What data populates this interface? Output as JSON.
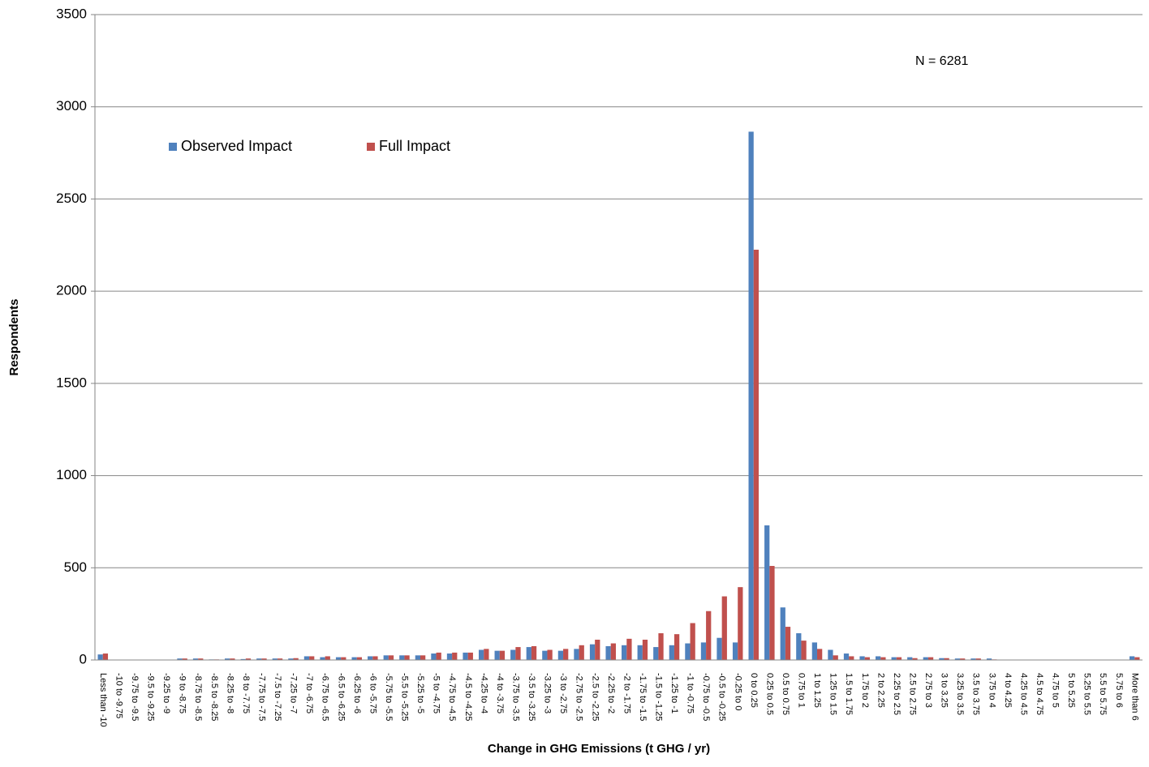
{
  "chart_data": {
    "type": "bar",
    "x_label": "Change in GHG Emissions (t GHG / yr)",
    "y_label": "Respondents",
    "annotation": "N = 6281",
    "categories": [
      "Less than -10",
      "-10 to -9.75",
      "-9.75 to -9.5",
      "-9.5 to -9.25",
      "-9.25 to -9",
      "-9 to -8.75",
      "-8.75 to -8.5",
      "-8.5 to -8.25",
      "-8.25 to -8",
      "-8 to -7.75",
      "-7.75 to -7.5",
      "-7.5 to -7.25",
      "-7.25 to -7",
      "-7 to -6.75",
      "-6.75 to -6.5",
      "-6.5 to -6.25",
      "-6.25 to -6",
      "-6 to -5.75",
      "-5.75 to -5.5",
      "-5.5 to -5.25",
      "-5.25 to -5",
      "-5 to -4.75",
      "-4.75 to -4.5",
      "-4.5 to -4.25",
      "-4.25 to -4",
      "-4 to -3.75",
      "-3.75 to -3.5",
      "-3.5 to -3.25",
      "-3.25 to -3",
      "-3 to -2.75",
      "-2.75 to -2.5",
      "-2.5 to -2.25",
      "-2.25 to -2",
      "-2 to -1.75",
      "-1.75 to -1.5",
      "-1.5 to -1.25",
      "-1.25 to -1",
      "-1 to -0.75",
      "-0.75 to -0.5",
      "-0.5 to -0.25",
      "-0.25 to 0",
      "0 to 0.25",
      "0.25 to 0.5",
      "0.5 to 0.75",
      "0.75 to 1",
      "1 to 1.25",
      "1.25 to 1.5",
      "1.5 to 1.75",
      "1.75 to 2",
      "2 to 2.25",
      "2.25 to 2.5",
      "2.5 to 2.75",
      "2.75 to 3",
      "3 to 3.25",
      "3.25 to 3.5",
      "3.5 to 3.75",
      "3.75 to 4",
      "4 to 4.25",
      "4.25 to 4.5",
      "4.5 to 4.75",
      "4.75 to 5",
      "5 to 5.25",
      "5.25 to 5.5",
      "5.5 to 5.75",
      "5.75 to 6",
      "More than 6"
    ],
    "series": [
      {
        "name": "Observed Impact",
        "color": "#4f81bd",
        "values": [
          30,
          2,
          2,
          2,
          2,
          8,
          8,
          3,
          8,
          5,
          8,
          8,
          8,
          20,
          15,
          15,
          15,
          20,
          25,
          25,
          25,
          35,
          35,
          40,
          55,
          50,
          55,
          70,
          50,
          50,
          60,
          85,
          75,
          80,
          80,
          70,
          80,
          90,
          95,
          120,
          95,
          2865,
          730,
          285,
          145,
          95,
          55,
          35,
          20,
          20,
          15,
          15,
          15,
          10,
          8,
          8,
          8,
          2,
          2,
          2,
          2,
          2,
          2,
          2,
          2,
          20
        ]
      },
      {
        "name": "Full Impact",
        "color": "#c0504d",
        "values": [
          35,
          2,
          2,
          2,
          2,
          8,
          8,
          3,
          8,
          8,
          8,
          8,
          10,
          20,
          20,
          15,
          15,
          20,
          25,
          25,
          25,
          40,
          40,
          40,
          60,
          50,
          70,
          75,
          55,
          60,
          80,
          110,
          90,
          115,
          110,
          145,
          140,
          200,
          265,
          345,
          395,
          2225,
          510,
          180,
          105,
          60,
          25,
          20,
          15,
          15,
          15,
          10,
          15,
          10,
          8,
          8,
          3,
          2,
          2,
          2,
          2,
          2,
          2,
          2,
          2,
          15
        ]
      }
    ],
    "ylim": [
      0,
      3500
    ],
    "yticks": [
      0,
      500,
      1000,
      1500,
      2000,
      2500,
      3000,
      3500
    ],
    "grid": true,
    "legend": "top-left"
  }
}
